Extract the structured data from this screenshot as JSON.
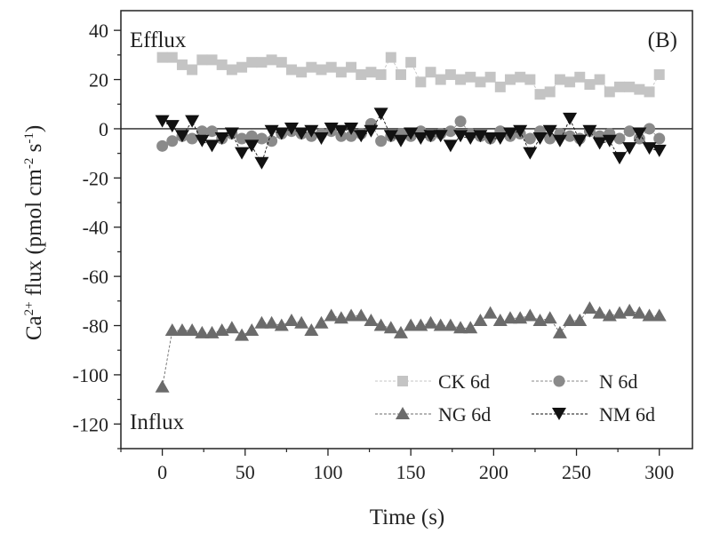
{
  "chart_data": {
    "type": "scatter",
    "panel_label": "(B)",
    "xlabel": "Time (s)",
    "ylabel_main": "Ca",
    "ylabel_sup": "2+",
    "ylabel_flux": " flux (pmol cm",
    "ylabel_sup2": "-2",
    "ylabel_s": " s",
    "ylabel_sup3": "-1",
    "ylabel_close": ")",
    "xlim": [
      -25,
      320
    ],
    "ylim": [
      -130,
      48
    ],
    "xticks": [
      0,
      50,
      100,
      150,
      200,
      250,
      300
    ],
    "xtick_labels": [
      "0",
      "50",
      "100",
      "150",
      "200",
      "250",
      "300"
    ],
    "yticks": [
      40,
      20,
      0,
      -20,
      -40,
      -60,
      -80,
      -100,
      -120
    ],
    "ytick_labels": [
      "40",
      "20",
      "0",
      "-20",
      "-40",
      "-60",
      "-80",
      "-100",
      "-120"
    ],
    "annotations": {
      "efflux": "Efflux",
      "influx": "Influx"
    },
    "zero_line": 0,
    "series": [
      {
        "name": "CK 6d",
        "marker": "square",
        "color": "#c4c4c4",
        "x": [
          0,
          6,
          12,
          18,
          24,
          30,
          36,
          42,
          48,
          54,
          60,
          66,
          72,
          78,
          84,
          90,
          96,
          102,
          108,
          114,
          120,
          126,
          132,
          138,
          144,
          150,
          156,
          162,
          168,
          174,
          180,
          186,
          192,
          198,
          204,
          210,
          216,
          222,
          228,
          234,
          240,
          246,
          252,
          258,
          264,
          270,
          276,
          282,
          288,
          294,
          300
        ],
        "y": [
          29,
          29,
          26,
          24,
          28,
          28,
          26,
          24,
          25,
          27,
          27,
          28,
          27,
          24,
          23,
          25,
          24,
          25,
          23,
          25,
          22,
          23,
          22,
          29,
          22,
          27,
          19,
          23,
          20,
          22,
          20,
          21,
          19,
          21,
          17,
          20,
          21,
          20,
          14,
          15,
          20,
          19,
          21,
          18,
          20,
          15,
          17,
          17,
          16,
          15,
          22
        ]
      },
      {
        "name": "N 6d",
        "marker": "circle",
        "color": "#8a8a8a",
        "x": [
          0,
          6,
          12,
          18,
          24,
          30,
          36,
          42,
          48,
          54,
          60,
          66,
          72,
          78,
          84,
          90,
          96,
          102,
          108,
          114,
          120,
          126,
          132,
          138,
          144,
          150,
          156,
          162,
          168,
          174,
          180,
          186,
          192,
          198,
          204,
          210,
          216,
          222,
          228,
          234,
          240,
          246,
          252,
          258,
          264,
          270,
          276,
          282,
          288,
          294,
          300
        ],
        "y": [
          -7,
          -5,
          -3,
          -4,
          -1,
          -1,
          -4,
          -2,
          -4,
          -3,
          -4,
          -5,
          -2,
          -1,
          -2,
          -3,
          -2,
          -1,
          -3,
          -3,
          -2,
          2,
          -5,
          -3,
          -2,
          -3,
          -1,
          -3,
          -2,
          -1,
          3,
          -2,
          -3,
          -4,
          -1,
          -3,
          -2,
          -4,
          -1,
          -4,
          -2,
          -3,
          -4,
          -1,
          -3,
          -2,
          -4,
          -1,
          -4,
          0,
          -4
        ]
      },
      {
        "name": "NG 6d",
        "marker": "triangle-up",
        "color": "#6b6b6b",
        "x": [
          0,
          6,
          12,
          18,
          24,
          30,
          36,
          42,
          48,
          54,
          60,
          66,
          72,
          78,
          84,
          90,
          96,
          102,
          108,
          114,
          120,
          126,
          132,
          138,
          144,
          150,
          156,
          162,
          168,
          174,
          180,
          186,
          192,
          198,
          204,
          210,
          216,
          222,
          228,
          234,
          240,
          246,
          252,
          258,
          264,
          270,
          276,
          282,
          288,
          294,
          300
        ],
        "y": [
          -105,
          -82,
          -82,
          -82,
          -83,
          -83,
          -82,
          -81,
          -84,
          -82,
          -79,
          -79,
          -80,
          -78,
          -79,
          -82,
          -79,
          -76,
          -77,
          -76,
          -76,
          -78,
          -80,
          -81,
          -83,
          -80,
          -80,
          -79,
          -80,
          -80,
          -81,
          -81,
          -78,
          -75,
          -78,
          -77,
          -77,
          -76,
          -78,
          -77,
          -83,
          -78,
          -78,
          -73,
          -75,
          -76,
          -75,
          -74,
          -75,
          -76,
          -76
        ]
      },
      {
        "name": "NM 6d",
        "marker": "triangle-down",
        "color": "#111111",
        "x": [
          0,
          6,
          12,
          18,
          24,
          30,
          36,
          42,
          48,
          54,
          60,
          66,
          72,
          78,
          84,
          90,
          96,
          102,
          108,
          114,
          120,
          126,
          132,
          138,
          144,
          150,
          156,
          162,
          168,
          174,
          180,
          186,
          192,
          198,
          204,
          210,
          216,
          222,
          228,
          234,
          240,
          246,
          252,
          258,
          264,
          270,
          276,
          282,
          288,
          294,
          300
        ],
        "y": [
          3,
          1,
          -3,
          3,
          -5,
          -7,
          -4,
          -2,
          -10,
          -7,
          -14,
          -1,
          -2,
          0,
          -2,
          -1,
          -4,
          0,
          -1,
          0,
          -3,
          -1,
          6,
          -3,
          -5,
          -2,
          -4,
          -3,
          -3,
          -7,
          -3,
          -4,
          -3,
          -4,
          -4,
          -2,
          -1,
          -10,
          -4,
          -1,
          -5,
          4,
          -5,
          -1,
          -6,
          -5,
          -12,
          -8,
          -2,
          -8,
          -9
        ]
      }
    ],
    "legend": {
      "position": "bottom-right",
      "entries": [
        "CK 6d",
        "N 6d",
        "NG 6d",
        "NM 6d"
      ]
    }
  }
}
